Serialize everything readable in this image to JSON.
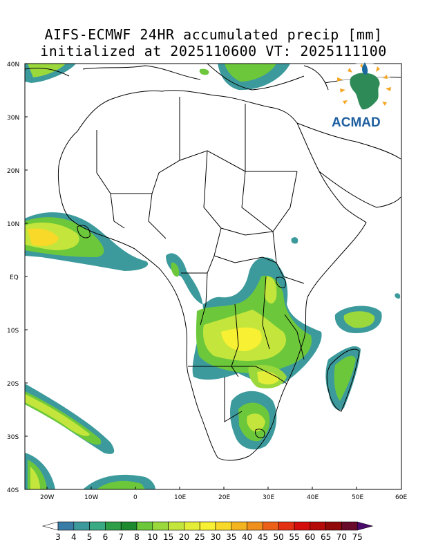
{
  "title": {
    "line1": "AIFS-ECMWF 24HR accumulated precip [mm]",
    "line2": "initialized at 2025110600 VT: 2025111100"
  },
  "logo": {
    "text": "ACMAD",
    "icon": "africa-continent-logo-icon"
  },
  "lat_labels": [
    "40N",
    "30N",
    "20N",
    "10N",
    "EQ",
    "10S",
    "20S",
    "30S",
    "40S"
  ],
  "lon_labels": [
    "20W",
    "10W",
    "0",
    "10E",
    "20E",
    "30E",
    "40E",
    "50E",
    "60E"
  ],
  "colorbar": {
    "levels": [
      "3",
      "4",
      "5",
      "6",
      "7",
      "8",
      "10",
      "15",
      "20",
      "25",
      "30",
      "35",
      "40",
      "45",
      "50",
      "55",
      "60",
      "65",
      "70",
      "75"
    ],
    "colors": [
      "#ffffff",
      "#3a7ca8",
      "#3d9a9c",
      "#3aaa84",
      "#2e9e48",
      "#1e8a30",
      "#6cc83a",
      "#9ad83c",
      "#c4e63c",
      "#e4ee38",
      "#f8f032",
      "#f8d828",
      "#f4b420",
      "#f0901c",
      "#ec6018",
      "#e43012",
      "#d40c0c",
      "#b40a0a",
      "#900808",
      "#6a0a2a",
      "#4a0a6a"
    ]
  },
  "map_extent": {
    "lon": [
      -25,
      60
    ],
    "lat": [
      -40,
      40
    ]
  }
}
